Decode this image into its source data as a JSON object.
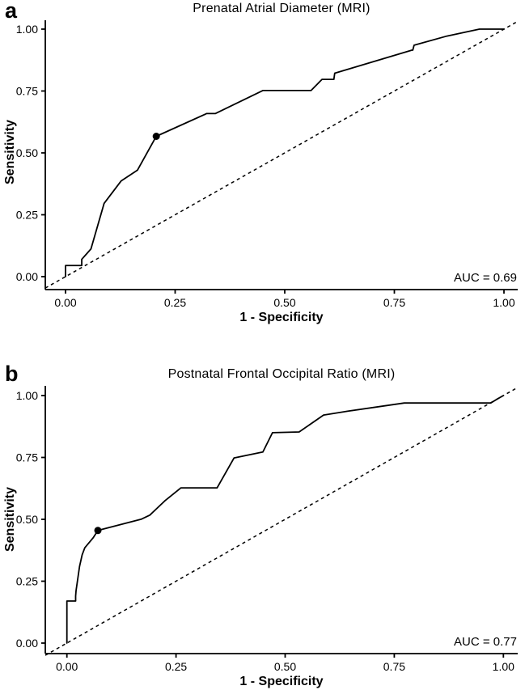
{
  "figure": {
    "background": "#ffffff",
    "ink_color": "#000000"
  },
  "chart_data": [
    {
      "type": "line",
      "panel_label": "a",
      "title": "Prenatal Atrial Diameter (MRI)",
      "xlabel": "1 - Specificity",
      "ylabel": "Sensitivity",
      "auc_label": "AUC = 0.69",
      "xlim": [
        0,
        1
      ],
      "ylim": [
        0,
        1
      ],
      "grid": false,
      "x_ticks": [
        0,
        0.25,
        0.5,
        0.75,
        1.0
      ],
      "x_tick_labels": [
        "0.00",
        "0.25",
        "0.50",
        "0.75",
        "1.00"
      ],
      "y_ticks": [
        0,
        0.25,
        0.5,
        0.75,
        1.0
      ],
      "y_tick_labels": [
        "0.00",
        "0.25",
        "0.50",
        "0.75",
        "1.00"
      ],
      "series": [
        {
          "name": "ROC curve",
          "style": "solid",
          "points": [
            [
              0,
              0
            ],
            [
              0,
              0.045
            ],
            [
              0.037,
              0.045
            ],
            [
              0.037,
              0.07
            ],
            [
              0.058,
              0.112
            ],
            [
              0.088,
              0.296
            ],
            [
              0.127,
              0.387
            ],
            [
              0.164,
              0.43
            ],
            [
              0.207,
              0.567
            ],
            [
              0.322,
              0.659
            ],
            [
              0.342,
              0.659
            ],
            [
              0.45,
              0.752
            ],
            [
              0.56,
              0.752
            ],
            [
              0.585,
              0.797
            ],
            [
              0.612,
              0.797
            ],
            [
              0.614,
              0.822
            ],
            [
              0.79,
              0.915
            ],
            [
              0.792,
              0.915
            ],
            [
              0.795,
              0.935
            ],
            [
              0.87,
              0.972
            ],
            [
              0.944,
              1.0
            ],
            [
              1.0,
              1.0
            ]
          ]
        },
        {
          "name": "chance line",
          "style": "dashed",
          "points": [
            [
              0,
              0
            ],
            [
              1,
              1
            ]
          ]
        }
      ],
      "cutpoint": {
        "x": 0.207,
        "y": 0.567
      }
    },
    {
      "type": "line",
      "panel_label": "b",
      "title": "Postnatal Frontal Occipital Ratio (MRI)",
      "xlabel": "1 - Specificity",
      "ylabel": "Sensitivity",
      "auc_label": "AUC = 0.77",
      "xlim": [
        0,
        1
      ],
      "ylim": [
        0,
        1
      ],
      "grid": false,
      "x_ticks": [
        0,
        0.25,
        0.5,
        0.75,
        1.0
      ],
      "x_tick_labels": [
        "0.00",
        "0.25",
        "0.50",
        "0.75",
        "1.00"
      ],
      "y_ticks": [
        0,
        0.25,
        0.5,
        0.75,
        1.0
      ],
      "y_tick_labels": [
        "0.00",
        "0.25",
        "0.50",
        "0.75",
        "1.00"
      ],
      "series": [
        {
          "name": "ROC curve",
          "style": "solid",
          "points": [
            [
              0,
              0
            ],
            [
              0,
              0.17
            ],
            [
              0.02,
              0.17
            ],
            [
              0.02,
              0.19
            ],
            [
              0.021,
              0.212
            ],
            [
              0.029,
              0.31
            ],
            [
              0.035,
              0.357
            ],
            [
              0.041,
              0.385
            ],
            [
              0.06,
              0.425
            ],
            [
              0.071,
              0.455
            ],
            [
              0.171,
              0.501
            ],
            [
              0.19,
              0.517
            ],
            [
              0.224,
              0.574
            ],
            [
              0.261,
              0.627
            ],
            [
              0.344,
              0.627
            ],
            [
              0.383,
              0.748
            ],
            [
              0.449,
              0.772
            ],
            [
              0.471,
              0.85
            ],
            [
              0.532,
              0.853
            ],
            [
              0.588,
              0.921
            ],
            [
              0.644,
              0.937
            ],
            [
              0.773,
              0.97
            ],
            [
              0.971,
              0.97
            ],
            [
              0.985,
              0.985
            ],
            [
              1.0,
              1.0
            ]
          ]
        },
        {
          "name": "chance line",
          "style": "dashed",
          "points": [
            [
              0,
              0
            ],
            [
              1,
              1
            ]
          ]
        }
      ],
      "cutpoint": {
        "x": 0.071,
        "y": 0.455
      }
    }
  ]
}
